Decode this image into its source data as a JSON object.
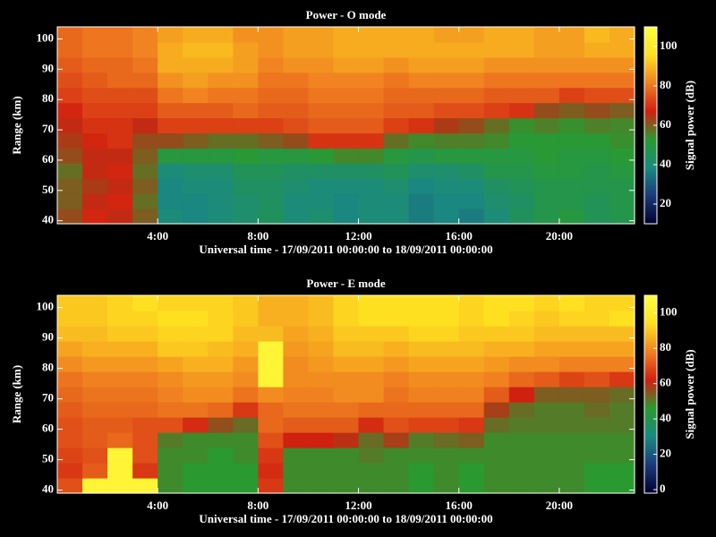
{
  "chart_data": [
    {
      "type": "heatmap",
      "title": "Power - O mode",
      "xlabel": "Universal time - 17/09/2011 00:00:00 to 18/09/2011 00:00:00",
      "ylabel": "Range (km)",
      "colorbar_label": "Signal power (dB)",
      "xbins": [
        0,
        1,
        2,
        3,
        4,
        5,
        6,
        7,
        8,
        9,
        10,
        11,
        12,
        13,
        14,
        15,
        16,
        17,
        18,
        19,
        20,
        21,
        22,
        23
      ],
      "ybins": [
        39,
        44,
        49,
        54,
        59,
        64,
        69,
        74,
        79,
        84,
        89,
        94,
        99,
        104
      ],
      "xlim": [
        0,
        23
      ],
      "ylim": [
        39,
        104
      ],
      "clim": [
        10,
        110
      ],
      "xticks": [
        {
          "value": 4,
          "label": "4:00"
        },
        {
          "value": 8,
          "label": "8:00"
        },
        {
          "value": 12,
          "label": "12:00"
        },
        {
          "value": 16,
          "label": "16:00"
        },
        {
          "value": 20,
          "label": "20:00"
        }
      ],
      "yticks": [
        40,
        50,
        60,
        70,
        80,
        90,
        100
      ],
      "cticks": [
        20,
        40,
        60,
        80,
        100
      ],
      "colormap": [
        "#000030",
        "#1a3a7a",
        "#1a8a80",
        "#2a9a30",
        "#d02010",
        "#f08020",
        "#ffe020",
        "#ffff40"
      ],
      "z": [
        [
          62,
          68,
          66,
          60,
          40,
          38,
          40,
          42,
          45,
          40,
          42,
          38,
          40,
          40,
          36,
          38,
          36,
          40,
          45,
          48,
          50,
          46,
          48
        ],
        [
          60,
          66,
          68,
          58,
          38,
          38,
          40,
          42,
          44,
          40,
          40,
          38,
          40,
          40,
          36,
          38,
          38,
          42,
          44,
          48,
          48,
          46,
          48
        ],
        [
          60,
          64,
          66,
          60,
          38,
          40,
          40,
          44,
          44,
          42,
          40,
          40,
          40,
          42,
          38,
          40,
          40,
          44,
          46,
          48,
          48,
          48,
          48
        ],
        [
          58,
          66,
          68,
          58,
          40,
          42,
          42,
          46,
          46,
          44,
          44,
          44,
          44,
          46,
          42,
          42,
          44,
          48,
          48,
          50,
          50,
          48,
          50
        ],
        [
          62,
          66,
          66,
          60,
          50,
          50,
          50,
          52,
          50,
          50,
          52,
          55,
          55,
          50,
          48,
          50,
          50,
          50,
          50,
          52,
          50,
          50,
          52
        ],
        [
          64,
          68,
          70,
          62,
          62,
          60,
          58,
          58,
          60,
          62,
          70,
          70,
          70,
          58,
          55,
          56,
          56,
          55,
          52,
          52,
          52,
          52,
          54
        ],
        [
          66,
          70,
          70,
          66,
          72,
          72,
          72,
          72,
          72,
          74,
          76,
          76,
          76,
          72,
          70,
          64,
          62,
          58,
          54,
          56,
          54,
          56,
          55
        ],
        [
          68,
          72,
          72,
          72,
          76,
          76,
          76,
          78,
          76,
          76,
          78,
          78,
          78,
          76,
          76,
          74,
          74,
          72,
          70,
          62,
          60,
          62,
          60
        ],
        [
          72,
          74,
          74,
          74,
          80,
          82,
          80,
          80,
          78,
          78,
          80,
          80,
          80,
          78,
          78,
          78,
          78,
          76,
          76,
          76,
          72,
          74,
          74
        ],
        [
          74,
          76,
          78,
          78,
          84,
          86,
          84,
          84,
          80,
          80,
          82,
          82,
          82,
          80,
          82,
          82,
          82,
          80,
          80,
          80,
          80,
          80,
          80
        ],
        [
          76,
          78,
          78,
          80,
          88,
          88,
          88,
          86,
          82,
          84,
          84,
          86,
          86,
          84,
          86,
          86,
          86,
          84,
          84,
          84,
          84,
          84,
          84
        ],
        [
          78,
          80,
          80,
          82,
          88,
          90,
          90,
          86,
          84,
          86,
          86,
          88,
          88,
          88,
          88,
          88,
          88,
          88,
          88,
          86,
          86,
          88,
          88
        ],
        [
          78,
          80,
          80,
          82,
          86,
          88,
          88,
          84,
          84,
          86,
          86,
          88,
          88,
          88,
          88,
          86,
          86,
          88,
          88,
          86,
          86,
          90,
          88
        ]
      ]
    },
    {
      "type": "heatmap",
      "title": "Power - E mode",
      "xlabel": "Universal time - 17/09/2011 00:00:00 to 18/09/2011 00:00:00",
      "ylabel": "Range (km)",
      "colorbar_label": "Signal power (dB)",
      "xbins": [
        0,
        1,
        2,
        3,
        4,
        5,
        6,
        7,
        8,
        9,
        10,
        11,
        12,
        13,
        14,
        15,
        16,
        17,
        18,
        19,
        20,
        21,
        22,
        23
      ],
      "ybins": [
        39,
        44,
        49,
        54,
        59,
        64,
        69,
        74,
        79,
        84,
        89,
        94,
        99,
        104
      ],
      "xlim": [
        0,
        23
      ],
      "ylim": [
        39,
        104
      ],
      "clim": [
        -2,
        110
      ],
      "xticks": [
        {
          "value": 4,
          "label": "4:00"
        },
        {
          "value": 8,
          "label": "8:00"
        },
        {
          "value": 12,
          "label": "12:00"
        },
        {
          "value": 16,
          "label": "16:00"
        },
        {
          "value": 20,
          "label": "20:00"
        }
      ],
      "yticks": [
        40,
        50,
        60,
        70,
        80,
        90,
        100
      ],
      "cticks": [
        0,
        20,
        40,
        60,
        80,
        100
      ],
      "colormap": [
        "#000030",
        "#1a3a7a",
        "#1a8a80",
        "#2a9a30",
        "#d02010",
        "#f08020",
        "#ffe020",
        "#ffff40"
      ],
      "z": [
        [
          70,
          105,
          105,
          105,
          48,
          46,
          46,
          46,
          66,
          48,
          48,
          48,
          48,
          48,
          46,
          48,
          46,
          48,
          48,
          48,
          48,
          46,
          46
        ],
        [
          66,
          72,
          105,
          66,
          48,
          46,
          46,
          46,
          64,
          48,
          48,
          48,
          48,
          48,
          46,
          48,
          46,
          48,
          48,
          48,
          48,
          46,
          46
        ],
        [
          68,
          70,
          105,
          70,
          48,
          48,
          46,
          48,
          66,
          48,
          48,
          48,
          50,
          48,
          48,
          48,
          48,
          48,
          48,
          48,
          48,
          48,
          48
        ],
        [
          70,
          72,
          74,
          70,
          50,
          48,
          48,
          48,
          70,
          62,
          62,
          60,
          52,
          58,
          50,
          52,
          54,
          48,
          48,
          48,
          48,
          48,
          48
        ],
        [
          70,
          72,
          72,
          70,
          70,
          64,
          56,
          52,
          74,
          72,
          72,
          72,
          64,
          70,
          68,
          68,
          66,
          52,
          50,
          50,
          50,
          50,
          50
        ],
        [
          72,
          74,
          74,
          74,
          76,
          76,
          74,
          66,
          74,
          76,
          76,
          76,
          74,
          74,
          74,
          74,
          74,
          58,
          52,
          50,
          50,
          52,
          50
        ],
        [
          74,
          76,
          76,
          76,
          78,
          80,
          80,
          76,
          80,
          78,
          78,
          80,
          80,
          76,
          78,
          78,
          78,
          72,
          62,
          54,
          54,
          54,
          52
        ],
        [
          76,
          78,
          78,
          78,
          80,
          82,
          82,
          80,
          105,
          80,
          80,
          80,
          80,
          78,
          80,
          80,
          80,
          78,
          74,
          72,
          68,
          70,
          66
        ],
        [
          80,
          82,
          82,
          82,
          84,
          86,
          86,
          82,
          105,
          80,
          82,
          84,
          84,
          82,
          84,
          84,
          84,
          82,
          80,
          80,
          78,
          78,
          78
        ],
        [
          84,
          86,
          86,
          86,
          90,
          90,
          88,
          86,
          105,
          82,
          84,
          88,
          88,
          86,
          88,
          88,
          88,
          86,
          86,
          84,
          84,
          84,
          84
        ],
        [
          88,
          88,
          90,
          90,
          92,
          92,
          92,
          88,
          88,
          84,
          86,
          90,
          90,
          90,
          92,
          92,
          90,
          90,
          90,
          88,
          88,
          88,
          88
        ],
        [
          90,
          90,
          92,
          92,
          94,
          94,
          92,
          90,
          86,
          86,
          88,
          92,
          94,
          94,
          94,
          94,
          92,
          94,
          92,
          90,
          92,
          92,
          94
        ],
        [
          90,
          90,
          92,
          94,
          92,
          92,
          92,
          90,
          86,
          86,
          88,
          92,
          94,
          94,
          94,
          94,
          92,
          94,
          94,
          92,
          94,
          92,
          92
        ]
      ]
    }
  ]
}
